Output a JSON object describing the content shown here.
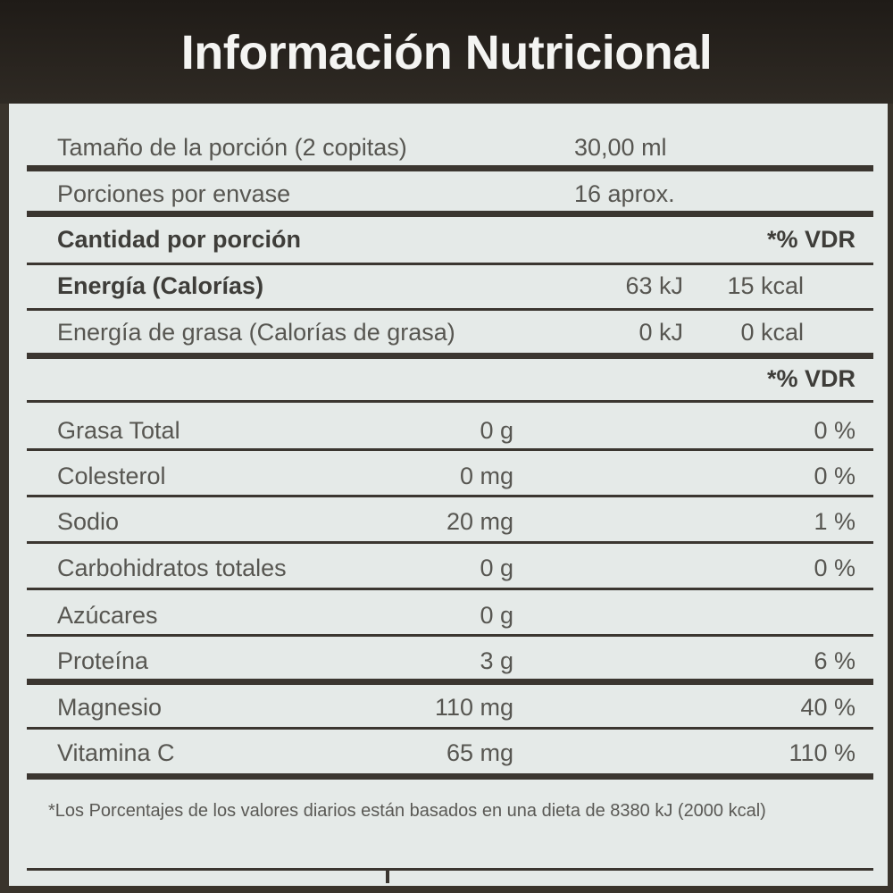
{
  "title": "Información Nutricional",
  "serving": {
    "label": "Tamaño de la porción (2 copitas)",
    "value": "30,00 ml"
  },
  "servings_per_container": {
    "label": "Porciones por envase",
    "value": "16 aprox."
  },
  "amount_header": {
    "label": "Cantidad por porción",
    "vdr": "*% VDR"
  },
  "energy": {
    "label": "Energía (Calorías)",
    "kj": "63 kJ",
    "kcal": "15 kcal"
  },
  "energy_fat": {
    "label": "Energía de grasa (Calorías de grasa)",
    "kj": "0 kJ",
    "kcal": "0 kcal"
  },
  "vdr_header": "*% VDR",
  "nutrients": [
    {
      "name": "Grasa Total",
      "amount": "0 g",
      "vdr": "0 %"
    },
    {
      "name": "Colesterol",
      "amount": "0 mg",
      "vdr": "0 %"
    },
    {
      "name": "Sodio",
      "amount": "20 mg",
      "vdr": "1 %"
    },
    {
      "name": "Carbohidratos totales",
      "amount": "0 g",
      "vdr": "0 %"
    },
    {
      "name": "Azúcares",
      "amount": "0 g",
      "vdr": ""
    },
    {
      "name": "Proteína",
      "amount": "3 g",
      "vdr": "6 %"
    },
    {
      "name": "Magnesio",
      "amount": "110 mg",
      "vdr": "40 %"
    },
    {
      "name": "Vitamina C",
      "amount": "65 mg",
      "vdr": "110 %"
    }
  ],
  "footnote": "*Los Porcentajes de los valores diarios están basados en una dieta de 8380 kJ (2000 kcal)"
}
